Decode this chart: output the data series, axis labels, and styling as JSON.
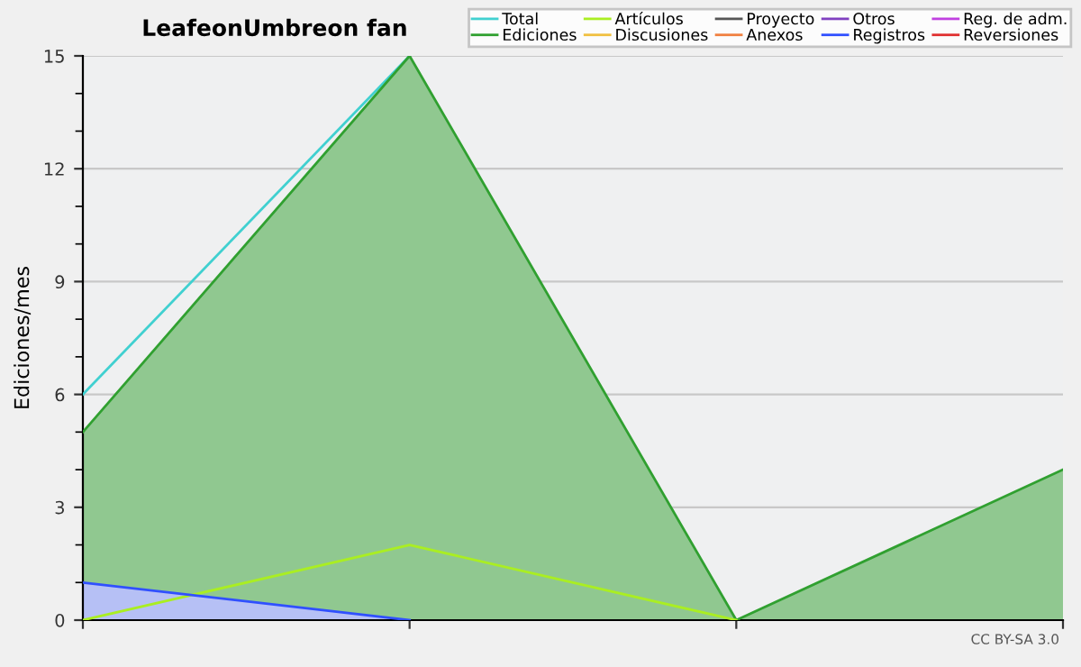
{
  "chart_data": {
    "type": "area",
    "title": "LeafeonUmbreon fan",
    "ylabel": "Ediciones/mes",
    "categories": [
      null,
      null,
      null,
      null
    ],
    "series": [
      {
        "name": "Total",
        "type": "line",
        "color": "#40d0d0",
        "values": [
          6,
          15,
          null,
          null
        ]
      },
      {
        "name": "Ediciones",
        "color": "#30a030",
        "values": [
          5,
          15,
          0,
          4
        ]
      },
      {
        "name": "Artículos",
        "type": "line",
        "color": "#aaee22",
        "values": [
          0,
          2,
          0,
          null
        ]
      },
      {
        "name": "Discusiones",
        "type": "line",
        "color": "#f0c040",
        "values": [
          null,
          null,
          null,
          null
        ]
      },
      {
        "name": "Proyecto",
        "type": "line",
        "color": "#555555",
        "values": [
          null,
          null,
          null,
          null
        ]
      },
      {
        "name": "Anexos",
        "type": "line",
        "color": "#f08040",
        "values": [
          null,
          null,
          null,
          null
        ]
      },
      {
        "name": "Otros",
        "type": "line",
        "color": "#8040c0",
        "values": [
          null,
          null,
          null,
          null
        ]
      },
      {
        "name": "Registros",
        "color": "#3050ff",
        "values": [
          1,
          0,
          null,
          null
        ]
      },
      {
        "name": "Reg. de adm.",
        "type": "line",
        "color": "#c040e0",
        "values": [
          null,
          null,
          null,
          null
        ]
      },
      {
        "name": "Reversiones",
        "type": "line",
        "color": "#e03030",
        "values": [
          null,
          null,
          null,
          null
        ]
      }
    ],
    "ylim": [
      0,
      15
    ],
    "yticks": [
      0,
      3,
      6,
      9,
      12,
      15
    ],
    "grid": "y",
    "legend": "top right",
    "annotations": [
      "CC BY-SA 3.0"
    ]
  }
}
